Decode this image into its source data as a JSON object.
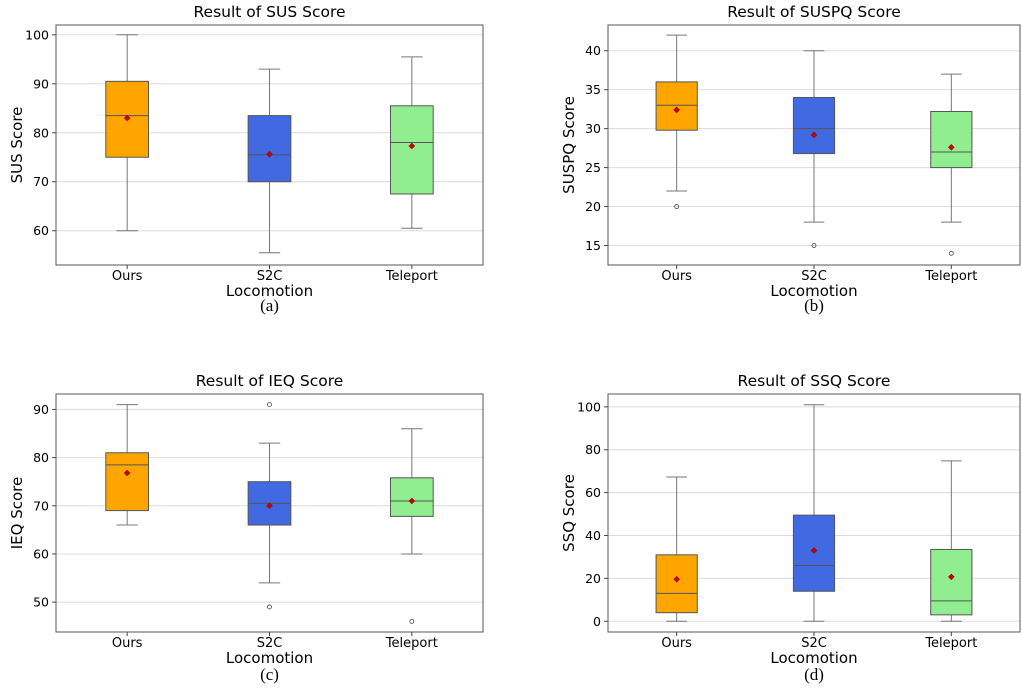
{
  "chart_data": [
    {
      "type": "box",
      "title": "Result of SUS Score",
      "xlabel": "Locomotion",
      "ylabel": "SUS Score",
      "ylim": [
        53,
        102
      ],
      "yticks": [
        60,
        70,
        80,
        90,
        100
      ],
      "grid": true,
      "caption": "(a)",
      "categories": [
        "Ours",
        "S2C",
        "Teleport"
      ],
      "colors": [
        "#FFA500",
        "#4169E1",
        "#90EE90"
      ],
      "boxes": [
        {
          "whisker_low": 60,
          "q1": 75,
          "median": 83.5,
          "q3": 90.5,
          "whisker_high": 100,
          "mean": 83,
          "outliers": []
        },
        {
          "whisker_low": 55.5,
          "q1": 70,
          "median": 75.5,
          "q3": 83.5,
          "whisker_high": 93,
          "mean": 75.6,
          "outliers": []
        },
        {
          "whisker_low": 60.5,
          "q1": 67.5,
          "median": 78,
          "q3": 85.5,
          "whisker_high": 95.5,
          "mean": 77.3,
          "outliers": []
        }
      ]
    },
    {
      "type": "box",
      "title": "Result of SUSPQ Score",
      "xlabel": "Locomotion",
      "ylabel": "SUSPQ Score",
      "ylim": [
        12.5,
        43.3
      ],
      "yticks": [
        15,
        20,
        25,
        30,
        35,
        40
      ],
      "grid": true,
      "caption": "(b)",
      "categories": [
        "Ours",
        "S2C",
        "Teleport"
      ],
      "colors": [
        "#FFA500",
        "#4169E1",
        "#90EE90"
      ],
      "boxes": [
        {
          "whisker_low": 22,
          "q1": 29.8,
          "median": 33,
          "q3": 36,
          "whisker_high": 42,
          "mean": 32.4,
          "outliers": [
            20
          ]
        },
        {
          "whisker_low": 18,
          "q1": 26.8,
          "median": 30,
          "q3": 34,
          "whisker_high": 40,
          "mean": 29.2,
          "outliers": [
            15
          ]
        },
        {
          "whisker_low": 18,
          "q1": 25,
          "median": 27,
          "q3": 32.2,
          "whisker_high": 37,
          "mean": 27.6,
          "outliers": [
            14
          ]
        }
      ]
    },
    {
      "type": "box",
      "title": "Result of IEQ Score",
      "xlabel": "Locomotion",
      "ylabel": "IEQ Score",
      "ylim": [
        43.8,
        93.2
      ],
      "yticks": [
        50,
        60,
        70,
        80,
        90
      ],
      "grid": true,
      "caption": "(c)",
      "categories": [
        "Ours",
        "S2C",
        "Teleport"
      ],
      "colors": [
        "#FFA500",
        "#4169E1",
        "#90EE90"
      ],
      "boxes": [
        {
          "whisker_low": 66,
          "q1": 69,
          "median": 78.5,
          "q3": 81,
          "whisker_high": 91,
          "mean": 76.8,
          "outliers": []
        },
        {
          "whisker_low": 54,
          "q1": 66,
          "median": 70.5,
          "q3": 75,
          "whisker_high": 83,
          "mean": 70,
          "outliers": [
            91,
            49
          ]
        },
        {
          "whisker_low": 60,
          "q1": 67.8,
          "median": 71,
          "q3": 75.8,
          "whisker_high": 86,
          "mean": 71,
          "outliers": [
            46
          ]
        }
      ]
    },
    {
      "type": "box",
      "title": "Result of SSQ Score",
      "xlabel": "Locomotion",
      "ylabel": "SSQ Score",
      "ylim": [
        -5,
        106
      ],
      "yticks": [
        0,
        20,
        40,
        60,
        80,
        100
      ],
      "grid": true,
      "caption": "(d)",
      "categories": [
        "Ours",
        "S2C",
        "Teleport"
      ],
      "colors": [
        "#FFA500",
        "#4169E1",
        "#90EE90"
      ],
      "boxes": [
        {
          "whisker_low": 0,
          "q1": 4,
          "median": 13,
          "q3": 31,
          "whisker_high": 67.3,
          "mean": 19.6,
          "outliers": []
        },
        {
          "whisker_low": 0,
          "q1": 14,
          "median": 26,
          "q3": 49.5,
          "whisker_high": 101,
          "mean": 33,
          "outliers": []
        },
        {
          "whisker_low": 0,
          "q1": 3,
          "median": 9.5,
          "q3": 33.5,
          "whisker_high": 74.8,
          "mean": 20.7,
          "outliers": []
        }
      ]
    }
  ]
}
